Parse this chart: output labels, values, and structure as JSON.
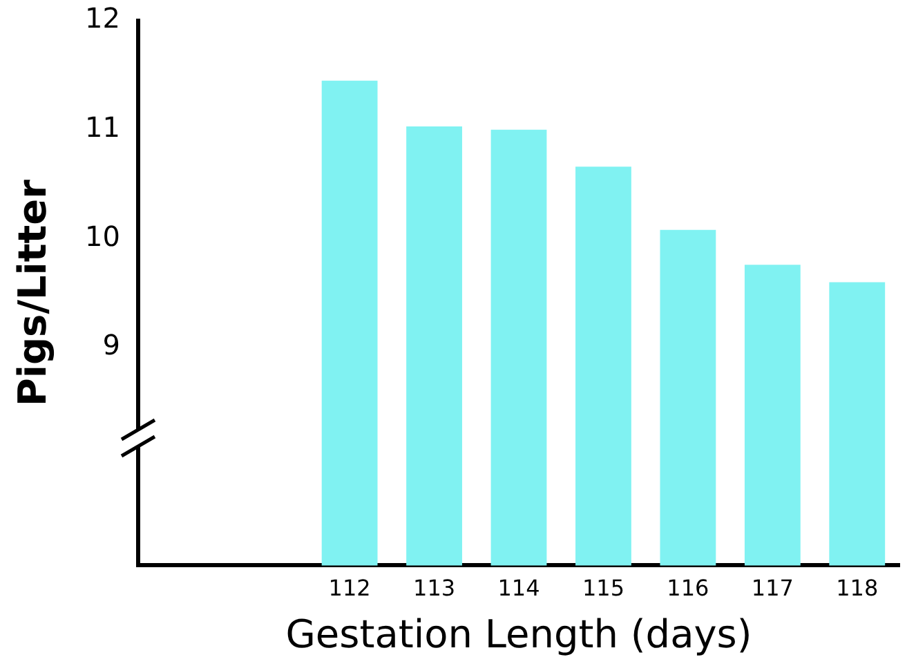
{
  "chart_data": {
    "type": "bar",
    "xlabel": "Gestation Length (days)",
    "ylabel": "Pigs/Litter",
    "categories": [
      null,
      null,
      "112",
      "113",
      "114",
      "115",
      "116",
      "117",
      "118"
    ],
    "values": [
      null,
      null,
      11.45,
      11.03,
      11.0,
      10.66,
      10.08,
      9.76,
      9.6
    ],
    "color": "#80f2f2",
    "ylim": [
      7,
      12
    ],
    "yticks": [
      9,
      10,
      11,
      12
    ],
    "grid": false,
    "legend": false
  }
}
